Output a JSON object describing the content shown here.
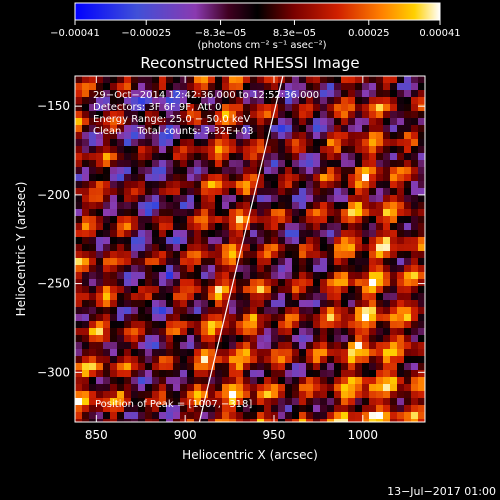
{
  "chart_data": {
    "type": "heatmap",
    "title": "Reconstructed RHESSI Image",
    "xlabel": "Heliocentric X (arcsec)",
    "ylabel": "Heliocentric Y (arcsec)",
    "xlim": [
      838,
      1035
    ],
    "ylim": [
      -328,
      -133
    ],
    "x_ticks": [
      850,
      900,
      950,
      1000
    ],
    "y_ticks": [
      -150,
      -200,
      -250,
      -300
    ],
    "x_tick_labels": [
      "850",
      "900",
      "950",
      "1000"
    ],
    "y_tick_labels": [
      "−150",
      "−200",
      "−250",
      "−300"
    ],
    "colorbar": {
      "range": [
        -0.00041,
        0.00041
      ],
      "ticks": [
        -0.00041,
        -0.00025,
        -8.3e-05,
        8.3e-05,
        0.00025,
        0.00041
      ],
      "tick_labels": [
        "−0.00041",
        "−0.00025",
        "−8.3e−05",
        "8.3e−05",
        "0.00025",
        "0.00041"
      ],
      "units": "(photons cm⁻² s⁻¹ asec⁻²)"
    },
    "annotations": {
      "time_range": "29−Oct−2014 12:42:36.000 to 12:52:36.000",
      "detectors": "Detectors: 3F 6F 9F, Att 0",
      "energy": "Energy Range: 25.0 − 50.0 keV",
      "method": "Clean     Total counts: 3.32E+03",
      "peak": "Position of Peak = [1007,−318]"
    },
    "limb_line": {
      "x": [
        908,
        955
      ],
      "y": [
        -328,
        -133
      ]
    },
    "footer_date": "13−Jul−2017 01:00"
  }
}
